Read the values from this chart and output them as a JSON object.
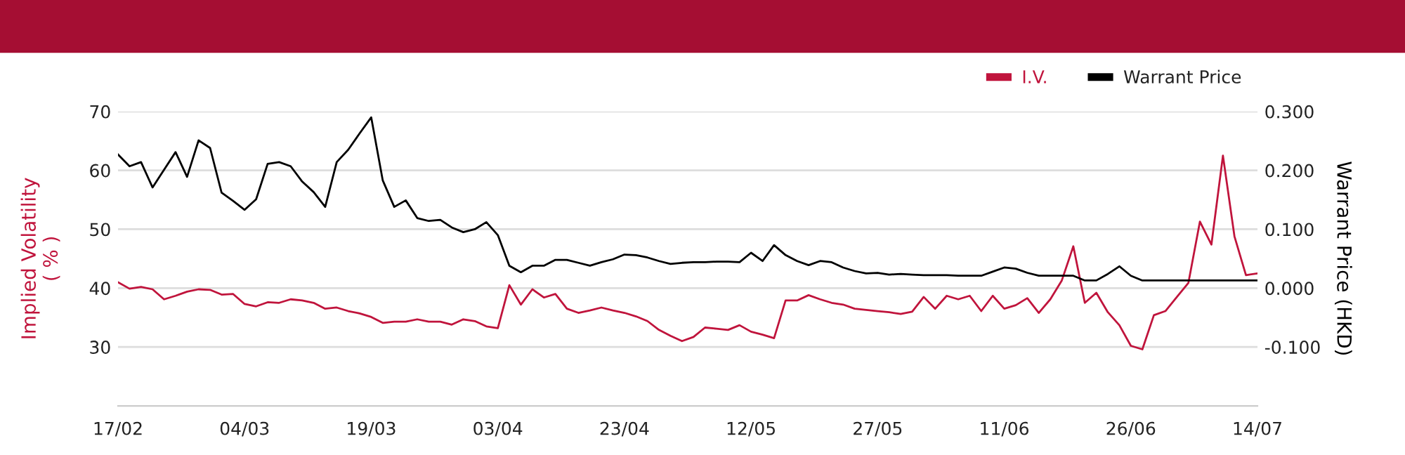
{
  "chart_data": {
    "type": "line",
    "categories": [
      "17/02",
      null,
      null,
      null,
      null,
      null,
      null,
      null,
      null,
      null,
      null,
      "04/03",
      null,
      null,
      null,
      null,
      null,
      null,
      null,
      null,
      null,
      null,
      "19/03",
      null,
      null,
      null,
      null,
      null,
      null,
      null,
      null,
      null,
      null,
      "03/04",
      null,
      null,
      null,
      null,
      null,
      null,
      null,
      null,
      null,
      null,
      "23/04",
      null,
      null,
      null,
      null,
      null,
      null,
      null,
      null,
      null,
      null,
      "12/05",
      null,
      null,
      null,
      null,
      null,
      null,
      null,
      null,
      null,
      null,
      "27/05",
      null,
      null,
      null,
      null,
      null,
      null,
      null,
      null,
      null,
      null,
      "11/06",
      null,
      null,
      null,
      null,
      null,
      null,
      null,
      null,
      null,
      null,
      "26/06",
      null,
      null,
      null,
      null,
      null,
      null,
      null,
      null,
      null,
      null,
      "14/07"
    ],
    "series": [
      {
        "name": "I.V.",
        "color": "#c0143c",
        "values": [
          41.0,
          39.9,
          40.2,
          39.8,
          38.1,
          38.7,
          39.4,
          39.8,
          39.7,
          38.9,
          39.0,
          37.3,
          36.9,
          37.6,
          37.5,
          38.1,
          37.9,
          37.5,
          36.5,
          36.7,
          36.1,
          35.7,
          35.1,
          34.1,
          34.3,
          34.3,
          34.7,
          34.3,
          34.3,
          33.8,
          34.7,
          34.4,
          33.5,
          33.2,
          40.5,
          37.2,
          39.8,
          38.4,
          39.0,
          36.5,
          35.8,
          36.2,
          36.7,
          36.2,
          35.8,
          35.2,
          34.4,
          32.9,
          31.9,
          31.0,
          31.7,
          33.3,
          33.1,
          32.9,
          33.7,
          32.6,
          32.1,
          31.5,
          37.9,
          37.9,
          38.8,
          38.1,
          37.5,
          37.2,
          36.5,
          36.3,
          36.1,
          35.9,
          35.6,
          36.0,
          38.5,
          36.5,
          38.7,
          38.1,
          38.7,
          36.1,
          38.7,
          36.5,
          37.1,
          38.3,
          35.8,
          38.1,
          41.3,
          47.1,
          37.5,
          39.2,
          35.9,
          33.7,
          30.2,
          29.6,
          35.4,
          36.1,
          38.5,
          40.9,
          51.3,
          47.4,
          62.5,
          48.8,
          42.2,
          42.5
        ]
      },
      {
        "name": "Warrant Price",
        "color": "#000000",
        "axis": "y2",
        "values": [
          0.227,
          0.207,
          0.214,
          0.171,
          0.201,
          0.231,
          0.189,
          0.251,
          0.238,
          0.162,
          0.148,
          0.133,
          0.151,
          0.211,
          0.214,
          0.207,
          0.181,
          0.163,
          0.138,
          0.214,
          0.235,
          0.263,
          0.29,
          0.183,
          0.138,
          0.149,
          0.119,
          0.114,
          0.116,
          0.103,
          0.095,
          0.1,
          0.112,
          0.09,
          0.038,
          0.027,
          0.038,
          0.038,
          0.048,
          0.048,
          0.043,
          0.038,
          0.044,
          0.049,
          0.057,
          0.056,
          0.052,
          0.046,
          0.041,
          0.043,
          0.044,
          0.044,
          0.045,
          0.045,
          0.044,
          0.06,
          0.046,
          0.073,
          0.056,
          0.046,
          0.039,
          0.046,
          0.044,
          0.035,
          0.029,
          0.025,
          0.026,
          0.023,
          0.024,
          0.023,
          0.022,
          0.022,
          0.022,
          0.021,
          0.021,
          0.021,
          0.028,
          0.035,
          0.033,
          0.026,
          0.021,
          0.021,
          0.021,
          0.021,
          0.013,
          0.013,
          0.024,
          0.037,
          0.021,
          0.013,
          0.013,
          0.013,
          0.013,
          0.013,
          0.013,
          0.013,
          0.013,
          0.013,
          0.013,
          0.013
        ]
      }
    ],
    "ylabel": "Implied Volatility\n( % )",
    "y2label": "Warrant Price (HKD)",
    "ylim": [
      20,
      70
    ],
    "yticks": [
      30,
      40,
      50,
      60,
      70
    ],
    "y2lim": [
      -0.2,
      0.3
    ],
    "y2ticks": [
      {
        "value": -0.1,
        "label": "-0.100"
      },
      {
        "value": 0.0,
        "label": "0.000"
      },
      {
        "value": 0.1,
        "label": "0.100"
      },
      {
        "value": 0.2,
        "label": "0.200"
      },
      {
        "value": 0.3,
        "label": "0.300"
      }
    ],
    "grid": "y",
    "legend": "top right",
    "marker": "none",
    "line_style": "solid"
  }
}
